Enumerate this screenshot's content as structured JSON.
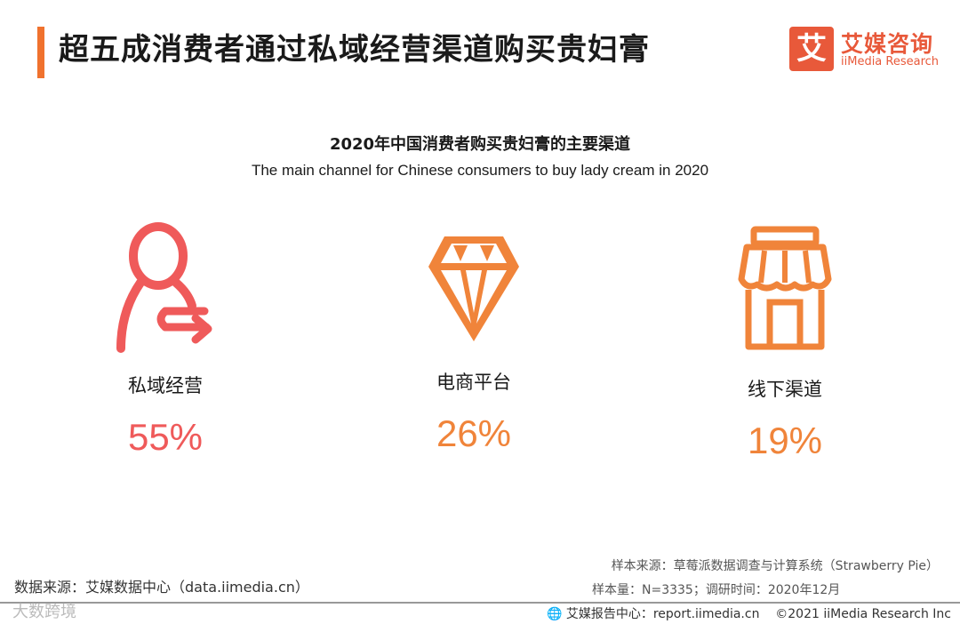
{
  "page": {
    "title": "超五成消费者通过私域经营渠道购买贵妇膏"
  },
  "logo": {
    "mark": "艾",
    "name_cn": "艾媒咨询",
    "name_en": "iiMedia Research"
  },
  "chart_data": {
    "type": "table",
    "title": "2020年中国消费者购买贵妇膏的主要渠道",
    "subtitle": "The main channel for Chinese consumers to buy lady cream in 2020",
    "categories": [
      "私域经营",
      "电商平台",
      "线下渠道"
    ],
    "values": [
      55,
      26,
      19
    ],
    "value_labels": [
      "55%",
      "26%",
      "19%"
    ],
    "icons": [
      "person-arrow-icon",
      "diamond-icon",
      "storefront-icon"
    ],
    "colors": [
      "#ef5a5a",
      "#f0843a",
      "#f0843a"
    ]
  },
  "sources": {
    "data_source": "数据来源：艾媒数据中心（data.iimedia.cn）",
    "sample_source": "样本来源：草莓派数据调查与计算系统（Strawberry Pie）",
    "sample_info": "样本量：N=3335；调研时间：2020年12月"
  },
  "footer": {
    "watermark": "大数跨境",
    "center": "艾媒报告中心：report.iimedia.cn",
    "copyright": "©2021  iiMedia Research  Inc"
  }
}
